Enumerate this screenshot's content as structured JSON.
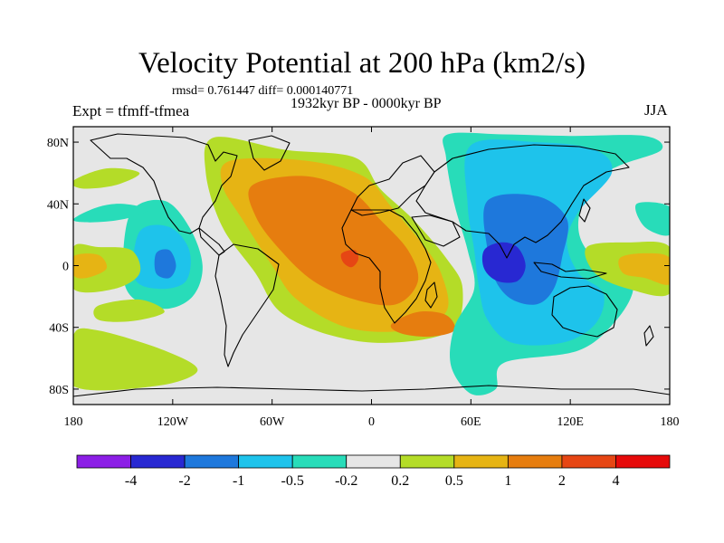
{
  "title": "Velocity Potential at 200 hPa (km2/s)",
  "stats": "rmsd= 0.761447 diff= 0.000140771",
  "left_label": "Expt = tfmff-tfmea",
  "center_label": "1932kyr BP - 0000kyr BP",
  "right_label": "JJA",
  "chart_data": {
    "type": "heatmap",
    "title": "Velocity Potential at 200 hPa (km2/s)",
    "xlim": [
      -180,
      180
    ],
    "ylim": [
      -90,
      90
    ],
    "x_ticks": [
      {
        "value": -180,
        "label": "180"
      },
      {
        "value": -120,
        "label": "120W"
      },
      {
        "value": -60,
        "label": "60W"
      },
      {
        "value": 0,
        "label": "0"
      },
      {
        "value": 60,
        "label": "60E"
      },
      {
        "value": 120,
        "label": "120E"
      },
      {
        "value": 180,
        "label": "180"
      }
    ],
    "y_ticks": [
      {
        "value": 80,
        "label": "80N"
      },
      {
        "value": 40,
        "label": "40N"
      },
      {
        "value": 0,
        "label": "0"
      },
      {
        "value": -40,
        "label": "40S"
      },
      {
        "value": -80,
        "label": "80S"
      }
    ],
    "colorbar": {
      "levels": [
        "-4",
        "-2",
        "-1",
        "-0.5",
        "-0.2",
        "0.2",
        "0.5",
        "1",
        "2",
        "4"
      ],
      "colors": [
        "#8c1ee6",
        "#2828d2",
        "#1e78dc",
        "#1ec3eb",
        "#28dcb9",
        "#e6e6e6",
        "#b4dc28",
        "#e6b414",
        "#e67d0f",
        "#e64614",
        "#e60a0a"
      ]
    },
    "regions": [
      {
        "name": "positive-africa-atlantic",
        "level": 0.2,
        "points": [
          [
            -95,
            83
          ],
          [
            -52,
            75
          ],
          [
            -10,
            70
          ],
          [
            5,
            50
          ],
          [
            25,
            30
          ],
          [
            45,
            5
          ],
          [
            55,
            -15
          ],
          [
            48,
            -42
          ],
          [
            10,
            -50
          ],
          [
            -25,
            -45
          ],
          [
            -55,
            -30
          ],
          [
            -70,
            -5
          ],
          [
            -90,
            25
          ],
          [
            -100,
            60
          ]
        ]
      },
      {
        "name": "positive-africa-atlantic",
        "level": 0.5,
        "points": [
          [
            -85,
            68
          ],
          [
            -40,
            68
          ],
          [
            -5,
            58
          ],
          [
            12,
            38
          ],
          [
            30,
            15
          ],
          [
            42,
            -5
          ],
          [
            45,
            -30
          ],
          [
            20,
            -42
          ],
          [
            -15,
            -40
          ],
          [
            -45,
            -22
          ],
          [
            -60,
            0
          ],
          [
            -78,
            30
          ],
          [
            -90,
            52
          ]
        ]
      },
      {
        "name": "positive-africa-atlantic",
        "level": 1,
        "points": [
          [
            -72,
            52
          ],
          [
            -40,
            58
          ],
          [
            -12,
            48
          ],
          [
            5,
            30
          ],
          [
            22,
            10
          ],
          [
            28,
            -10
          ],
          [
            15,
            -25
          ],
          [
            -10,
            -22
          ],
          [
            -35,
            -10
          ],
          [
            -55,
            10
          ],
          [
            -70,
            32
          ]
        ]
      },
      {
        "name": "positive-south-africa",
        "level": 1,
        "points": [
          [
            12,
            -38
          ],
          [
            28,
            -30
          ],
          [
            45,
            -32
          ],
          [
            50,
            -42
          ],
          [
            35,
            -46
          ],
          [
            18,
            -44
          ]
        ]
      },
      {
        "name": "positive-west-africa",
        "level": 2,
        "points": [
          [
            -18,
            8
          ],
          [
            -10,
            10
          ],
          [
            -8,
            4
          ],
          [
            -12,
            -1
          ],
          [
            -17,
            2
          ]
        ]
      },
      {
        "name": "negative-asia-indian",
        "level": -0.2,
        "points": [
          [
            46,
            85
          ],
          [
            80,
            85
          ],
          [
            120,
            84
          ],
          [
            165,
            84
          ],
          [
            175,
            75
          ],
          [
            150,
            65
          ],
          [
            135,
            55
          ],
          [
            125,
            30
          ],
          [
            130,
            10
          ],
          [
            150,
            -5
          ],
          [
            158,
            -15
          ],
          [
            148,
            -35
          ],
          [
            125,
            -55
          ],
          [
            80,
            -63
          ],
          [
            75,
            -80
          ],
          [
            60,
            -83
          ],
          [
            48,
            -65
          ],
          [
            50,
            -40
          ],
          [
            62,
            -15
          ],
          [
            58,
            10
          ],
          [
            50,
            40
          ],
          [
            45,
            70
          ]
        ]
      },
      {
        "name": "negative-asia-indian",
        "level": -0.5,
        "points": [
          [
            60,
            78
          ],
          [
            100,
            80
          ],
          [
            135,
            75
          ],
          [
            145,
            60
          ],
          [
            125,
            35
          ],
          [
            118,
            15
          ],
          [
            125,
            -5
          ],
          [
            140,
            -18
          ],
          [
            135,
            -38
          ],
          [
            115,
            -50
          ],
          [
            85,
            -50
          ],
          [
            70,
            -35
          ],
          [
            65,
            -15
          ],
          [
            62,
            10
          ],
          [
            58,
            40
          ]
        ]
      },
      {
        "name": "negative-asia-indian",
        "level": -1,
        "points": [
          [
            70,
            42
          ],
          [
            100,
            45
          ],
          [
            118,
            30
          ],
          [
            115,
            5
          ],
          [
            110,
            -15
          ],
          [
            100,
            -25
          ],
          [
            85,
            -22
          ],
          [
            75,
            -10
          ],
          [
            70,
            10
          ]
        ]
      },
      {
        "name": "negative-asia-indian",
        "level": -2,
        "points": [
          [
            68,
            10
          ],
          [
            78,
            15
          ],
          [
            88,
            12
          ],
          [
            93,
            0
          ],
          [
            88,
            -10
          ],
          [
            76,
            -10
          ],
          [
            68,
            -2
          ]
        ]
      },
      {
        "name": "negative-east-pacific",
        "level": -0.2,
        "points": [
          [
            -145,
            35
          ],
          [
            -125,
            42
          ],
          [
            -110,
            25
          ],
          [
            -102,
            0
          ],
          [
            -108,
            -20
          ],
          [
            -125,
            -28
          ],
          [
            -145,
            -20
          ],
          [
            -150,
            0
          ]
        ]
      },
      {
        "name": "negative-east-pacific",
        "level": -0.5,
        "points": [
          [
            -140,
            22
          ],
          [
            -122,
            25
          ],
          [
            -110,
            10
          ],
          [
            -112,
            -10
          ],
          [
            -128,
            -15
          ],
          [
            -143,
            -8
          ]
        ]
      },
      {
        "name": "negative-east-pacific",
        "level": -1,
        "points": [
          [
            -130,
            8
          ],
          [
            -122,
            10
          ],
          [
            -118,
            0
          ],
          [
            -122,
            -8
          ],
          [
            -130,
            -5
          ]
        ]
      },
      {
        "name": "negative-north-pacific",
        "level": -0.2,
        "points": [
          [
            -180,
            30
          ],
          [
            -165,
            38
          ],
          [
            -150,
            40
          ],
          [
            -135,
            36
          ],
          [
            -150,
            30
          ],
          [
            -170,
            28
          ]
        ]
      },
      {
        "name": "positive-north-pacific",
        "level": 0.2,
        "points": [
          [
            -180,
            55
          ],
          [
            -160,
            63
          ],
          [
            -140,
            60
          ],
          [
            -155,
            52
          ],
          [
            -175,
            50
          ]
        ]
      },
      {
        "name": "positive-west-pacific",
        "level": 0.2,
        "points": [
          [
            -180,
            12
          ],
          [
            -165,
            12
          ],
          [
            -145,
            10
          ],
          [
            -140,
            -5
          ],
          [
            -155,
            -15
          ],
          [
            -180,
            -15
          ]
        ]
      },
      {
        "name": "positive-west-pacific",
        "level": 0.5,
        "points": [
          [
            -180,
            6
          ],
          [
            -165,
            7
          ],
          [
            -160,
            -2
          ],
          [
            -172,
            -8
          ],
          [
            -180,
            -6
          ]
        ]
      },
      {
        "name": "positive-south-pacific",
        "level": 0.2,
        "points": [
          [
            -165,
            -26
          ],
          [
            -140,
            -22
          ],
          [
            -125,
            -30
          ],
          [
            -145,
            -36
          ],
          [
            -165,
            -35
          ]
        ]
      },
      {
        "name": "positive-south-pacific-lower",
        "level": 0.2,
        "points": [
          [
            -180,
            -45
          ],
          [
            -165,
            -42
          ],
          [
            -125,
            -55
          ],
          [
            -105,
            -68
          ],
          [
            -130,
            -78
          ],
          [
            -180,
            -78
          ]
        ]
      },
      {
        "name": "positive-maritime",
        "level": 0.2,
        "points": [
          [
            130,
            12
          ],
          [
            155,
            15
          ],
          [
            180,
            12
          ],
          [
            180,
            -18
          ],
          [
            155,
            -15
          ],
          [
            135,
            -5
          ]
        ]
      },
      {
        "name": "positive-maritime",
        "level": 0.5,
        "points": [
          [
            150,
            5
          ],
          [
            165,
            8
          ],
          [
            180,
            5
          ],
          [
            180,
            -12
          ],
          [
            165,
            -8
          ],
          [
            152,
            -5
          ]
        ]
      },
      {
        "name": "negative-far-east",
        "level": -0.2,
        "points": [
          [
            160,
            40
          ],
          [
            180,
            38
          ],
          [
            180,
            20
          ],
          [
            165,
            25
          ]
        ]
      }
    ]
  }
}
